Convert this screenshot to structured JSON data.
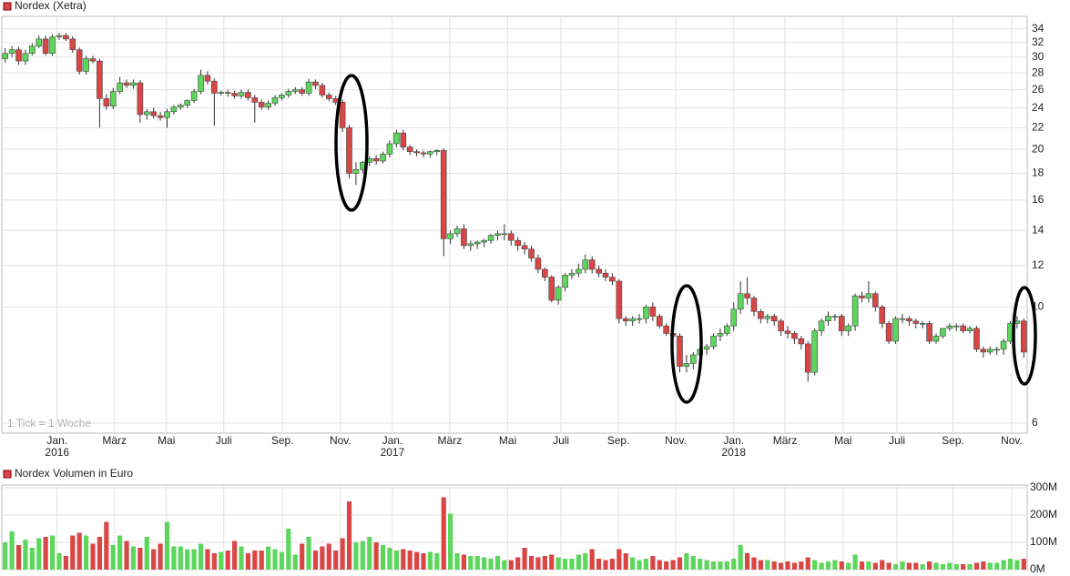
{
  "chart_data": [
    {
      "type": "candlestick",
      "legend": "Nordex (Xetra)",
      "note": "1 Tick = 1 Woche",
      "colors": {
        "up": "#5cd65c",
        "down": "#d94646"
      },
      "open": [
        29.8,
        30.5,
        31,
        29.5,
        30.5,
        31.5,
        32.5,
        30.5,
        32.8,
        33,
        32.5,
        31,
        28.2,
        29.8,
        29.5,
        25,
        24.2,
        25.8,
        26.8,
        26.5,
        26.8,
        23.3,
        23.6,
        23.2,
        23.0,
        23.6,
        24.1,
        24.3,
        24.8,
        25.8,
        27.7,
        27.0,
        25.6,
        25.7,
        25.6,
        25.3,
        25.7,
        25.1,
        24.6,
        24.1,
        24.5,
        25.1,
        25.4,
        25.8,
        26.0,
        25.6,
        26.9,
        26.5,
        25.4,
        25.0,
        24.6,
        22.0,
        18.0,
        18.3,
        18.9,
        19.2,
        19.0,
        19.6,
        20.5,
        21.5,
        20.2,
        19.8,
        19.7,
        19.6,
        19.8,
        19.9,
        13.5,
        13.8,
        14.1,
        13.1,
        13.2,
        13.3,
        13.4,
        13.7,
        13.8,
        13.8,
        13.4,
        13.1,
        12.9,
        12.4,
        11.8,
        11.4,
        10.3,
        10.9,
        11.5,
        11.6,
        11.8,
        12.3,
        11.8,
        11.6,
        11.4,
        11.2,
        9.5,
        9.4,
        9.5,
        9.5,
        10.0,
        9.6,
        9.2,
        8.9,
        8.8,
        7.7,
        7.8,
        8.1,
        8.3,
        8.4,
        8.8,
        8.9,
        9.2,
        9.9,
        10.6,
        10.4,
        9.8,
        9.5,
        9.6,
        9.4,
        9.0,
        8.9,
        8.7,
        8.5,
        7.5,
        9.0,
        9.4,
        9.6,
        9.6,
        9.0,
        9.2,
        10.5,
        10.4,
        10.6,
        10.0,
        9.3,
        8.6,
        9.5,
        9.5,
        9.4,
        9.3,
        9.3,
        8.6,
        8.8,
        9.1,
        9.2,
        9.2,
        9.0,
        9.1,
        8.3,
        8.2,
        8.3,
        8.3,
        8.6,
        9.3,
        9.4
      ],
      "high": [
        31.2,
        31.5,
        31.4,
        31.0,
        31.9,
        33.0,
        33.0,
        33.2,
        33.4,
        33.4,
        32.9,
        31.3,
        30.2,
        30.2,
        29.8,
        25.5,
        26.2,
        27.5,
        27.2,
        27.2,
        27.1,
        23.9,
        24.0,
        23.6,
        23.9,
        24.3,
        24.5,
        24.9,
        26.1,
        28.4,
        28.2,
        27.3,
        25.9,
        26.0,
        25.9,
        26.0,
        26.0,
        25.4,
        24.9,
        24.8,
        25.4,
        25.6,
        26.1,
        26.3,
        26.3,
        27.3,
        27.2,
        26.8,
        25.7,
        25.3,
        24.9,
        22.3,
        18.9,
        19.0,
        19.4,
        19.5,
        19.8,
        20.8,
        21.8,
        21.8,
        20.4,
        20.0,
        19.9,
        19.9,
        20.0,
        20.1,
        14.0,
        14.3,
        14.4,
        13.4,
        13.4,
        13.5,
        13.8,
        14.0,
        14.4,
        14.0,
        13.6,
        13.3,
        13.1,
        12.6,
        11.9,
        11.5,
        11.0,
        11.6,
        11.8,
        12.1,
        12.6,
        12.5,
        12.0,
        11.8,
        11.6,
        11.3,
        9.6,
        9.6,
        9.7,
        10.1,
        10.2,
        9.7,
        9.3,
        9.0,
        8.9,
        8.1,
        8.2,
        8.4,
        8.5,
        8.9,
        9.1,
        9.3,
        10.2,
        11.2,
        11.4,
        10.5,
        9.9,
        9.7,
        9.7,
        9.5,
        9.2,
        9.0,
        8.8,
        8.6,
        9.1,
        9.5,
        9.8,
        9.7,
        9.7,
        9.3,
        10.6,
        10.7,
        11.2,
        10.7,
        10.1,
        9.4,
        9.6,
        9.7,
        9.6,
        9.5,
        9.4,
        9.4,
        8.9,
        9.1,
        9.3,
        9.3,
        9.3,
        9.2,
        9.2,
        8.4,
        8.4,
        8.4,
        8.7,
        9.4,
        9.6,
        9.5
      ],
      "low": [
        29.3,
        30.0,
        29.0,
        29.0,
        30.2,
        31.2,
        30.2,
        30.2,
        32.4,
        32.2,
        30.6,
        27.8,
        27.8,
        29.2,
        22.0,
        23.8,
        23.9,
        25.5,
        26.2,
        26.1,
        22.5,
        22.8,
        22.9,
        22.7,
        22.0,
        23.3,
        23.8,
        24.0,
        24.5,
        25.5,
        26.6,
        22.2,
        25.3,
        25.2,
        25.0,
        25.0,
        24.8,
        22.5,
        23.8,
        23.8,
        24.2,
        24.8,
        25.1,
        25.5,
        25.3,
        25.3,
        26.1,
        25.1,
        24.7,
        24.3,
        21.6,
        17.6,
        17.1,
        18.0,
        18.6,
        18.7,
        18.8,
        19.3,
        20.2,
        19.9,
        19.5,
        19.4,
        19.3,
        19.3,
        19.5,
        12.5,
        13.2,
        13.6,
        12.9,
        12.8,
        12.9,
        13.0,
        13.2,
        13.4,
        13.4,
        13.1,
        12.8,
        12.6,
        12.2,
        11.6,
        11.2,
        10.2,
        10.1,
        10.7,
        11.3,
        11.4,
        11.6,
        11.6,
        11.4,
        11.2,
        11.0,
        9.3,
        9.2,
        9.2,
        9.3,
        9.3,
        9.4,
        9.1,
        8.8,
        8.7,
        7.5,
        7.5,
        7.6,
        7.9,
        8.1,
        8.3,
        8.6,
        8.8,
        9.0,
        9.7,
        10.1,
        9.6,
        9.3,
        9.3,
        9.2,
        8.8,
        8.7,
        8.5,
        8.3,
        7.2,
        7.4,
        8.8,
        9.2,
        9.4,
        8.8,
        8.8,
        9.0,
        10.2,
        10.2,
        9.8,
        9.1,
        8.5,
        8.5,
        9.3,
        9.2,
        9.1,
        9.1,
        8.5,
        8.5,
        8.7,
        9.0,
        9.0,
        8.9,
        8.9,
        8.2,
        8.0,
        8.1,
        8.1,
        8.1,
        8.5,
        9.1,
        8.0
      ],
      "close": [
        30.5,
        31,
        29.5,
        30.5,
        31.5,
        32.5,
        30.5,
        32.8,
        33,
        32.5,
        31,
        28.2,
        29.8,
        29.5,
        25,
        24.2,
        25.8,
        26.8,
        26.5,
        26.8,
        23.3,
        23.6,
        23.2,
        23.0,
        23.6,
        24.1,
        24.3,
        24.8,
        25.8,
        27.7,
        27.0,
        25.6,
        25.7,
        25.6,
        25.3,
        25.7,
        25.1,
        24.6,
        24.1,
        24.5,
        25.1,
        25.4,
        25.8,
        26.0,
        25.6,
        26.9,
        26.5,
        25.4,
        25.0,
        24.6,
        22.0,
        18.0,
        18.3,
        18.9,
        19.2,
        19.0,
        19.6,
        20.5,
        21.5,
        20.2,
        19.8,
        19.7,
        19.6,
        19.8,
        19.9,
        13.5,
        13.8,
        14.1,
        13.1,
        13.2,
        13.3,
        13.4,
        13.7,
        13.8,
        13.8,
        13.4,
        13.1,
        12.9,
        12.4,
        11.8,
        11.4,
        10.3,
        10.9,
        11.5,
        11.6,
        11.8,
        12.3,
        11.8,
        11.6,
        11.4,
        11.2,
        9.5,
        9.4,
        9.5,
        9.5,
        10.0,
        9.6,
        9.2,
        8.9,
        8.8,
        7.7,
        7.8,
        8.1,
        8.3,
        8.4,
        8.8,
        8.9,
        9.2,
        9.9,
        10.6,
        10.4,
        9.8,
        9.5,
        9.6,
        9.4,
        9.0,
        8.9,
        8.7,
        8.5,
        7.5,
        9.0,
        9.4,
        9.6,
        9.6,
        9.0,
        9.2,
        10.5,
        10.4,
        10.6,
        10.0,
        9.3,
        8.6,
        9.5,
        9.5,
        9.4,
        9.3,
        9.3,
        8.6,
        8.8,
        9.1,
        9.2,
        9.2,
        9.0,
        9.1,
        8.3,
        8.2,
        8.3,
        8.3,
        8.6,
        9.3,
        9.4,
        8.2
      ],
      "xlim": [
        -0.5,
        151.5
      ],
      "xticks": [
        {
          "value": 7.7,
          "label": "Jan."
        },
        {
          "value": 16.2,
          "label": "März"
        },
        {
          "value": 23.9,
          "label": "Mai"
        },
        {
          "value": 32.4,
          "label": "Juli"
        },
        {
          "value": 41.1,
          "label": "Sep."
        },
        {
          "value": 49.7,
          "label": "Nov."
        },
        {
          "value": 57.4,
          "label": "Jan."
        },
        {
          "value": 65.9,
          "label": "März"
        },
        {
          "value": 74.5,
          "label": "Mai"
        },
        {
          "value": 82.4,
          "label": "Juli"
        },
        {
          "value": 90.9,
          "label": "Sep."
        },
        {
          "value": 99.4,
          "label": "Nov."
        },
        {
          "value": 108.0,
          "label": "Jan."
        },
        {
          "value": 115.6,
          "label": "März"
        },
        {
          "value": 124.2,
          "label": "Mai"
        },
        {
          "value": 132.2,
          "label": "Juli"
        },
        {
          "value": 140.5,
          "label": "Sep."
        },
        {
          "value": 149.2,
          "label": "Nov."
        }
      ],
      "year_labels": [
        {
          "value": 7.7,
          "label": "2016"
        },
        {
          "value": 57.4,
          "label": "2017"
        },
        {
          "value": 108.0,
          "label": "2018"
        }
      ],
      "ylim": [
        5.74,
        35.9
      ],
      "log_scale": true,
      "yticks": [
        6,
        10,
        12,
        14,
        16,
        18,
        20,
        22,
        24,
        26,
        28,
        30,
        32,
        34
      ],
      "grid": true
    },
    {
      "type": "bar",
      "legend": "Nordex Volumen in Euro",
      "values": [
        100,
        140,
        90,
        110,
        80,
        115,
        120,
        125,
        60,
        50,
        125,
        135,
        125,
        95,
        120,
        175,
        90,
        125,
        105,
        85,
        80,
        120,
        75,
        95,
        175,
        85,
        85,
        75,
        75,
        95,
        75,
        60,
        65,
        70,
        105,
        85,
        60,
        70,
        70,
        85,
        75,
        65,
        150,
        55,
        95,
        120,
        70,
        85,
        95,
        70,
        115,
        250,
        100,
        105,
        120,
        100,
        90,
        80,
        70,
        75,
        70,
        65,
        60,
        65,
        60,
        265,
        205,
        60,
        55,
        50,
        50,
        45,
        40,
        50,
        35,
        35,
        45,
        80,
        50,
        45,
        50,
        55,
        45,
        40,
        40,
        55,
        60,
        75,
        40,
        35,
        40,
        75,
        60,
        45,
        35,
        40,
        50,
        35,
        30,
        35,
        45,
        60,
        50,
        40,
        35,
        30,
        30,
        30,
        40,
        90,
        60,
        45,
        35,
        35,
        30,
        25,
        30,
        25,
        30,
        45,
        35,
        25,
        30,
        35,
        30,
        25,
        55,
        30,
        30,
        25,
        35,
        25,
        20,
        30,
        25,
        25,
        20,
        30,
        25,
        20,
        25,
        20,
        20,
        20,
        25,
        30,
        25,
        25,
        35,
        40,
        35,
        40
      ],
      "ylim": [
        0,
        310
      ],
      "yticks": [
        {
          "value": 0,
          "label": "0M"
        },
        {
          "value": 100,
          "label": "100M"
        },
        {
          "value": 200,
          "label": "200M"
        },
        {
          "value": 300,
          "label": "300M"
        }
      ],
      "grid": true
    }
  ]
}
